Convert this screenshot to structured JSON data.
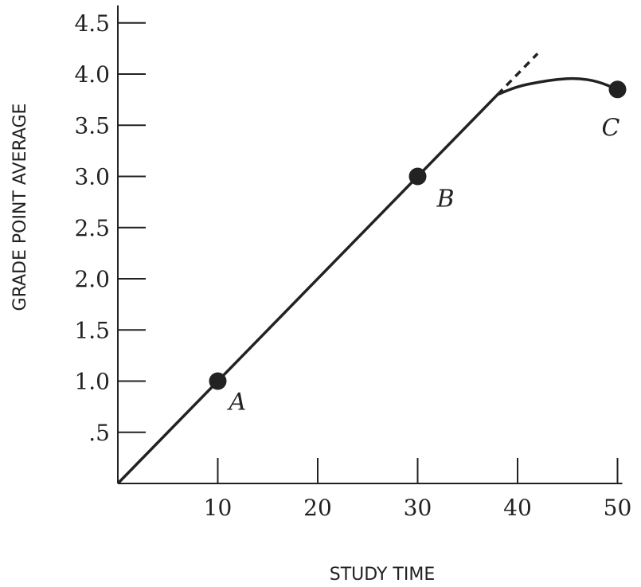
{
  "chart_data": {
    "type": "line",
    "title": "",
    "xlabel": "STUDY TIME",
    "ylabel": "GRADE POINT AVERAGE",
    "xlim": [
      0,
      50
    ],
    "ylim": [
      0,
      4.5
    ],
    "x_ticks": [
      10,
      20,
      30,
      40,
      50
    ],
    "x_tick_labels": [
      "10",
      "20",
      "30",
      "40",
      "50"
    ],
    "y_ticks": [
      0.5,
      1.0,
      1.5,
      2.0,
      2.5,
      3.0,
      3.5,
      4.0,
      4.5
    ],
    "y_tick_labels": [
      ".5",
      "1.0",
      "1.5",
      "2.0",
      "2.5",
      "3.0",
      "3.5",
      "4.0",
      "4.5"
    ],
    "grid": false,
    "series": [
      {
        "style": "solid",
        "points": [
          [
            0,
            0
          ],
          [
            38,
            3.8
          ],
          [
            40,
            3.88
          ],
          [
            42,
            3.92
          ],
          [
            44,
            3.95
          ],
          [
            46,
            3.96
          ],
          [
            48,
            3.93
          ],
          [
            50,
            3.85
          ]
        ]
      },
      {
        "style": "dashed",
        "points": [
          [
            38,
            3.8
          ],
          [
            42,
            4.2
          ]
        ]
      }
    ],
    "points": [
      {
        "label": "A",
        "x": 10,
        "y": 1.0
      },
      {
        "label": "B",
        "x": 30,
        "y": 3.0
      },
      {
        "label": "C",
        "x": 50,
        "y": 3.85
      }
    ]
  }
}
